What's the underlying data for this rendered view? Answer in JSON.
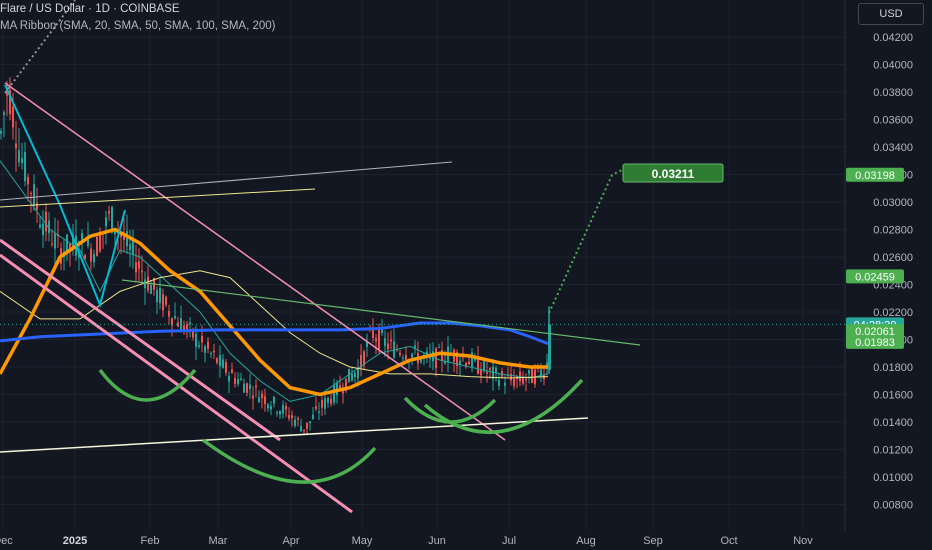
{
  "legend": {
    "symbol": "Flare / US Dollar · 1D · COINBASE",
    "indicator": "MA Ribbon (SMA, 20, SMA, 50, SMA, 100, SMA, 200)"
  },
  "currency_label": "USD",
  "colors": {
    "background": "#131722",
    "up": "#26a69a",
    "down": "#ef5350",
    "sma20": "#26a69a",
    "sma50": "#f0e68c",
    "sma100": "#ff9800",
    "sma200": "#2962ff",
    "pink_lines": "#f48fb1",
    "arcs": "#4caf50",
    "projection": "#4caf50",
    "support": "#f5f5dc"
  },
  "chart_data": {
    "type": "candlestick",
    "ylim": [
      0.0075,
      0.0435
    ],
    "y_ticks": [
      "0.04200",
      "0.04000",
      "0.03800",
      "0.03600",
      "0.03400",
      "0.03200",
      "0.03000",
      "0.02800",
      "0.02600",
      "0.02400",
      "0.02200",
      "0.02000",
      "0.01800",
      "0.01600",
      "0.01400",
      "0.01200",
      "0.01000",
      "0.00800"
    ],
    "x_ticks": [
      "Dec",
      "2025",
      "Feb",
      "Mar",
      "Apr",
      "May",
      "Jun",
      "Jul",
      "Aug",
      "Sep",
      "Oct",
      "Nov"
    ],
    "price_labels": [
      {
        "text": "0.03198",
        "value": 0.03198,
        "color": "#4caf50"
      },
      {
        "text": "0.02459",
        "value": 0.02459,
        "color": "#4caf50"
      },
      {
        "text": "04:28:30",
        "value": 0.0211,
        "color": "#26a69a"
      },
      {
        "text": "0.02061",
        "value": 0.02061,
        "color": "#4caf50"
      },
      {
        "text": "0.01983",
        "value": 0.01983,
        "color": "#4caf50"
      }
    ],
    "target_label": {
      "text": "0.03211",
      "value": 0.03211
    },
    "current_price": 0.0211,
    "series": [
      {
        "name": "SMA 20"
      },
      {
        "name": "SMA 50"
      },
      {
        "name": "SMA 100"
      },
      {
        "name": "SMA 200"
      }
    ]
  }
}
